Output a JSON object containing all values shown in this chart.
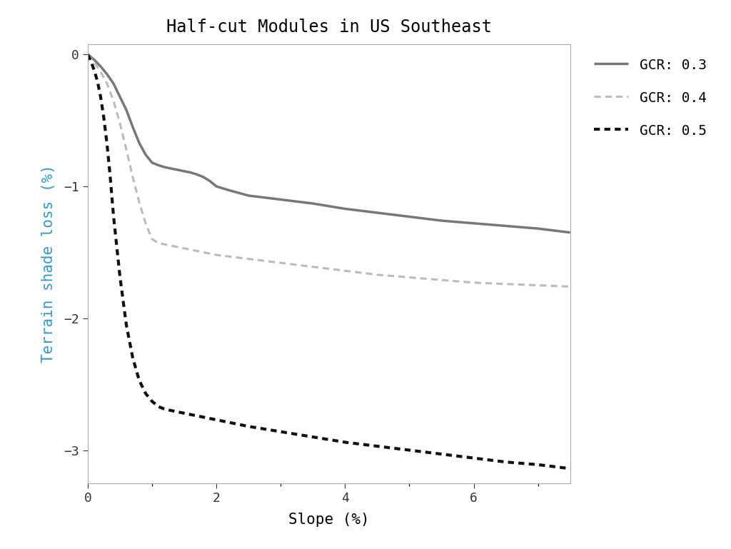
{
  "title": "Half-cut Modules in US Southeast",
  "xlabel": "Slope (%)",
  "ylabel": "Terrain shade loss (%)",
  "ylabel_color": "#3399cc",
  "xlim": [
    0,
    7.5
  ],
  "ylim": [
    -3.25,
    0.08
  ],
  "yticks": [
    0,
    -1,
    -2,
    -3
  ],
  "xticks": [
    0,
    2,
    4,
    6
  ],
  "xticks_minor": [
    1,
    3,
    5,
    7
  ],
  "background_color": "#ffffff",
  "gcr03_x": [
    0,
    0.1,
    0.2,
    0.3,
    0.4,
    0.5,
    0.6,
    0.7,
    0.8,
    0.9,
    1.0,
    1.1,
    1.2,
    1.3,
    1.4,
    1.5,
    1.6,
    1.7,
    1.8,
    1.9,
    2.0,
    2.2,
    2.5,
    3.0,
    3.5,
    4.0,
    4.5,
    5.0,
    5.5,
    6.0,
    6.5,
    7.0,
    7.5
  ],
  "gcr03_y": [
    0,
    -0.04,
    -0.09,
    -0.15,
    -0.22,
    -0.32,
    -0.42,
    -0.55,
    -0.67,
    -0.76,
    -0.82,
    -0.84,
    -0.855,
    -0.865,
    -0.875,
    -0.885,
    -0.895,
    -0.91,
    -0.93,
    -0.96,
    -1.0,
    -1.03,
    -1.07,
    -1.1,
    -1.13,
    -1.17,
    -1.2,
    -1.23,
    -1.26,
    -1.28,
    -1.3,
    -1.32,
    -1.35
  ],
  "gcr04_x": [
    0,
    0.1,
    0.2,
    0.3,
    0.4,
    0.5,
    0.6,
    0.7,
    0.8,
    0.9,
    1.0,
    1.1,
    1.2,
    1.3,
    1.4,
    1.5,
    1.6,
    1.7,
    1.8,
    2.0,
    2.5,
    3.0,
    3.5,
    4.0,
    4.5,
    5.0,
    5.5,
    6.0,
    6.5,
    7.0,
    7.5
  ],
  "gcr04_y": [
    0,
    -0.06,
    -0.13,
    -0.22,
    -0.35,
    -0.52,
    -0.72,
    -0.93,
    -1.12,
    -1.28,
    -1.4,
    -1.43,
    -1.44,
    -1.45,
    -1.46,
    -1.47,
    -1.48,
    -1.49,
    -1.5,
    -1.52,
    -1.55,
    -1.58,
    -1.61,
    -1.64,
    -1.67,
    -1.69,
    -1.71,
    -1.73,
    -1.74,
    -1.75,
    -1.76
  ],
  "gcr05_x": [
    0,
    0.05,
    0.1,
    0.15,
    0.2,
    0.25,
    0.3,
    0.35,
    0.4,
    0.5,
    0.6,
    0.7,
    0.8,
    0.9,
    1.0,
    1.1,
    1.2,
    1.3,
    1.4,
    1.5,
    1.6,
    1.7,
    1.8,
    1.9,
    2.0,
    2.2,
    2.5,
    3.0,
    3.5,
    4.0,
    4.5,
    5.0,
    5.5,
    6.0,
    6.5,
    7.0,
    7.5
  ],
  "gcr05_y": [
    0,
    -0.05,
    -0.12,
    -0.2,
    -0.32,
    -0.48,
    -0.68,
    -0.93,
    -1.22,
    -1.68,
    -2.05,
    -2.3,
    -2.47,
    -2.57,
    -2.63,
    -2.67,
    -2.69,
    -2.7,
    -2.71,
    -2.72,
    -2.73,
    -2.74,
    -2.75,
    -2.76,
    -2.77,
    -2.79,
    -2.82,
    -2.86,
    -2.9,
    -2.94,
    -2.97,
    -3.0,
    -3.03,
    -3.06,
    -3.09,
    -3.11,
    -3.14
  ],
  "gcr03_color": "#777777",
  "gcr04_color": "#bbbbbb",
  "gcr05_color": "#111111",
  "gcr03_linewidth": 2.5,
  "gcr04_linewidth": 2.2,
  "gcr05_linewidth": 3.0,
  "legend_labels": [
    "GCR: 0.3",
    "GCR: 0.4",
    "GCR: 0.5"
  ],
  "title_fontsize": 17,
  "axis_label_fontsize": 15,
  "tick_fontsize": 13,
  "legend_fontsize": 14
}
